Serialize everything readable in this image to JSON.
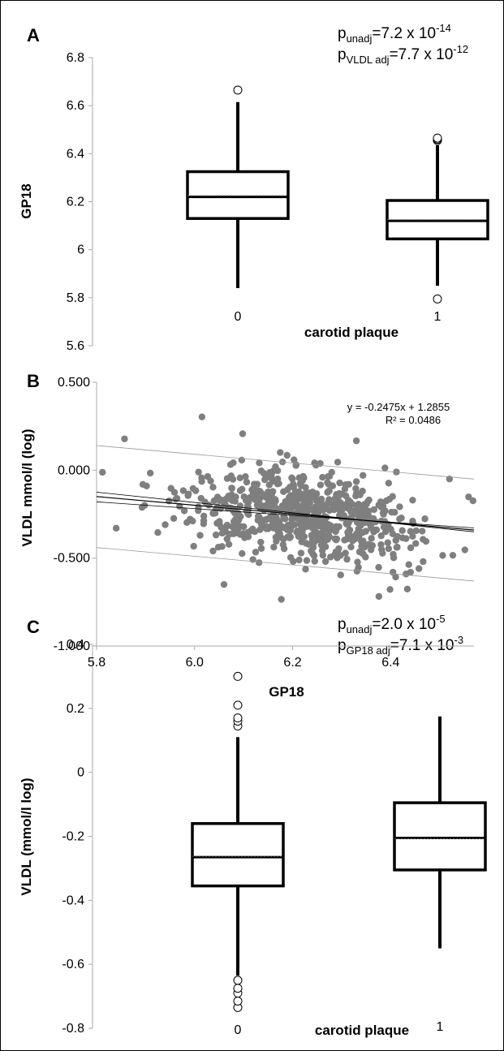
{
  "chart_data": [
    {
      "panel": "A",
      "type": "box",
      "ylabel": "GP18",
      "xlabel": "carotid plaque",
      "categories": [
        "0",
        "1"
      ],
      "ylim": [
        5.6,
        6.8
      ],
      "yticks": [
        "5.6",
        "5.8",
        "6",
        "6.2",
        "6.4",
        "6.6",
        "6.8"
      ],
      "boxes": [
        {
          "category": "0",
          "whisker_low": 5.84,
          "q1": 6.13,
          "median": 6.22,
          "mean": 6.225,
          "q3": 6.325,
          "whisker_high": 6.615,
          "outliers": [
            6.665
          ]
        },
        {
          "category": "1",
          "whisker_low": 5.85,
          "q1": 6.045,
          "median": 6.12,
          "mean": 6.125,
          "q3": 6.205,
          "whisker_high": 6.435,
          "outliers": [
            5.795,
            6.455,
            6.46,
            6.465
          ]
        }
      ],
      "annotations": [
        {
          "p": "p",
          "sub": "unadj",
          "text": "=7.2 x 10",
          "sup": "-14"
        },
        {
          "p": "p",
          "sub": "VLDL adj",
          "text": "=7.7 x 10",
          "sup": "-12"
        }
      ]
    },
    {
      "panel": "B",
      "type": "scatter",
      "ylabel": "VLDL mmol/l (log)",
      "xlabel": "GP18",
      "xlim": [
        5.8,
        6.57
      ],
      "ylim": [
        -1.0,
        0.5
      ],
      "xticks": [
        "5.8",
        "6.0",
        "6.2",
        "6.4"
      ],
      "yticks": [
        "-1.000",
        "-0.500",
        "0.000",
        "0.500"
      ],
      "equation": "y = -0.2475x + 1.2855",
      "r2": "R² = 0.0486",
      "fit": {
        "slope": -0.2475,
        "intercept": 1.2855
      },
      "point_count": 700,
      "point_color": "#7f7f7f",
      "points": [
        [
          5.812,
          -0.012
        ],
        [
          5.857,
          0.178
        ],
        [
          5.902,
          -0.09
        ],
        [
          6.015,
          0.303
        ],
        [
          6.098,
          0.207
        ],
        [
          6.33,
          0.167
        ],
        [
          6.177,
          -0.735
        ],
        [
          6.376,
          -0.718
        ],
        [
          6.298,
          -0.596
        ],
        [
          6.434,
          -0.676
        ],
        [
          6.559,
          -0.152
        ],
        [
          6.568,
          -0.174
        ],
        [
          5.84,
          -0.33
        ],
        [
          5.94,
          -0.31
        ],
        [
          6.06,
          -0.65
        ],
        [
          6.52,
          -0.05
        ]
      ]
    },
    {
      "panel": "C",
      "type": "box",
      "ylabel": "VLDL (mmol/l log)",
      "xlabel": "carotid plaque",
      "categories": [
        "0",
        "1"
      ],
      "ylim": [
        -0.8,
        0.4
      ],
      "yticks": [
        "-0.8",
        "-0.6",
        "-0.4",
        "-0.2",
        "0",
        "0.2",
        "0.4"
      ],
      "boxes": [
        {
          "category": "0",
          "whisker_low": -0.635,
          "q1": -0.355,
          "median": -0.265,
          "mean": -0.262,
          "q3": -0.16,
          "whisker_high": 0.11,
          "outliers": [
            -0.735,
            -0.715,
            -0.69,
            -0.675,
            -0.65,
            0.145,
            0.16,
            0.17,
            0.21,
            0.3
          ]
        },
        {
          "category": "1",
          "whisker_low": -0.55,
          "q1": -0.305,
          "median": -0.205,
          "mean": -0.207,
          "q3": -0.095,
          "whisker_high": 0.175,
          "outliers": []
        }
      ],
      "annotations": [
        {
          "p": "p",
          "sub": "unadj",
          "text": "=2.0 x 10",
          "sup": "-5"
        },
        {
          "p": "p",
          "sub": "GP18 adj",
          "text": "=7.1 x 10",
          "sup": "-3"
        }
      ]
    }
  ]
}
